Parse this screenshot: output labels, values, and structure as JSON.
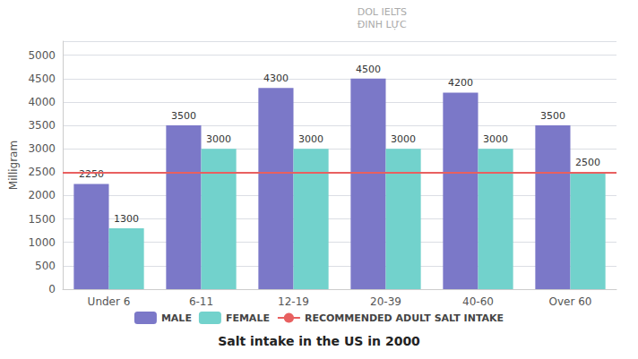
{
  "chart_data": {
    "type": "bar",
    "title": "Salt intake in the US in 2000",
    "y_label": "Milligram",
    "annotations": [
      "DOL IELTS\nĐINH LỰC"
    ],
    "categories": [
      "Under 6",
      "6-11",
      "12-19",
      "20-39",
      "40-60",
      "Over 60"
    ],
    "series": [
      {
        "name": "MALE",
        "color": "#7b78c8",
        "values": [
          2250,
          3500,
          4300,
          4500,
          4200,
          3500
        ]
      },
      {
        "name": "FEMALE",
        "color": "#72d2cc",
        "values": [
          1300,
          3000,
          3000,
          3000,
          3000,
          2500
        ]
      }
    ],
    "reference_lines": [
      {
        "name": "RECOMMENDED ADULT SALT INTAKE",
        "value": 2500,
        "color": "#e86060"
      }
    ],
    "ylim": [
      0,
      5300
    ],
    "yticks": [
      0,
      500,
      1000,
      1500,
      2000,
      2500,
      3000,
      3500,
      4000,
      4500,
      5000
    ],
    "data_labels": true,
    "grid": true,
    "legend": "bottom"
  }
}
